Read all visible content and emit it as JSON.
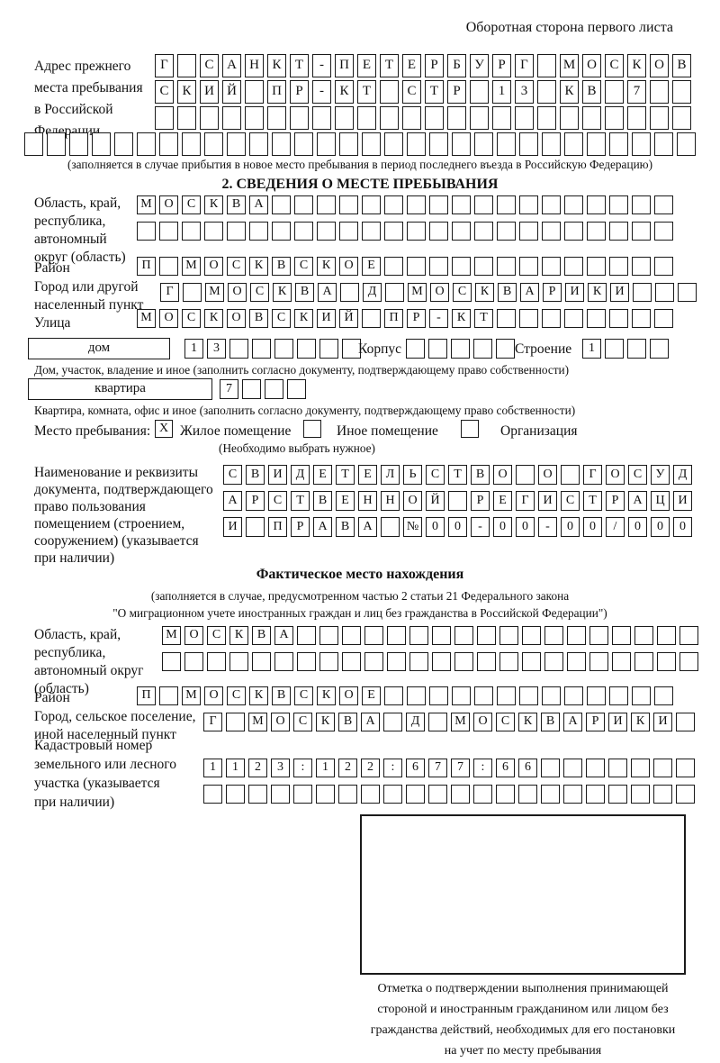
{
  "page_title": "Оборотная сторона первого листа",
  "prev_address": {
    "label_lines": [
      "Адрес прежнего",
      "места пребывания",
      "в Российской",
      "Федерации"
    ],
    "rows": [
      "Г САНКТ-ПЕТЕРБУРГ МОСКОВ",
      "СКИЙ ПР-КТ СТР 13 КВ 7  ",
      "                        "
    ],
    "full_row": "                              ",
    "note": "(заполняется в случае прибытия в новое место пребывания в период последнего въезда в Российскую Федерацию)"
  },
  "section2": {
    "heading": "2. СВЕДЕНИЯ О МЕСТЕ ПРЕБЫВАНИЯ",
    "oblast": {
      "label_lines": [
        "Область, край,",
        "республика,",
        "автономный",
        "округ (область)"
      ],
      "rows": [
        "МОСКВА                  ",
        "                        "
      ]
    },
    "raion": {
      "label": "Район",
      "row": "П МОСКВСКОЕ             "
    },
    "gorod": {
      "label_lines": [
        "Город или другой",
        "населенный пункт"
      ],
      "row": "Г МОСКВА Д МОСКВАРИКИ   "
    },
    "ulitsa": {
      "label": "Улица",
      "row": "МОСКОВСКИЙ ПР-КТ        "
    },
    "dom": {
      "label": "дом",
      "cells": "13      ",
      "korpus_label": "Корпус",
      "korpus_cells": "     ",
      "stroenie_label": "Строение",
      "stroenie_cells": "1   ",
      "note": "Дом, участок, владение и иное (заполнить согласно документу, подтверждающему право собственности)"
    },
    "kvartira": {
      "label": "квартира",
      "cells": "7   ",
      "note": "Квартира, комната, офис и иное (заполнить согласно документу, подтверждающему право собственности)"
    },
    "mesto": {
      "label": "Место пребывания:",
      "options": [
        {
          "label": "Жилое помещение",
          "checked": "X"
        },
        {
          "label": "Иное помещение",
          "checked": ""
        },
        {
          "label": "Организация",
          "checked": ""
        }
      ],
      "note": "(Необходимо выбрать нужное)"
    },
    "document": {
      "label_lines": [
        "Наименование и реквизиты",
        "документа, подтверждающего",
        "право пользования",
        "помещением (строением,",
        "сооружением) (указывается",
        "при наличии)"
      ],
      "rows": [
        "СВИДЕТЕЛЬСТВО О ГОСУД",
        "АРСТВЕННОЙ РЕГИСТРАЦИ",
        "И ПРАВА №00-00-00/000"
      ]
    }
  },
  "fact_location": {
    "heading": "Фактическое место нахождения",
    "note_lines": [
      "(заполняется в случае, предусмотренном частью 2 статьи 21 Федерального закона",
      "\"О миграционном учете иностранных граждан и лиц без гражданства в Российской Федерации\")"
    ],
    "oblast": {
      "label_lines": [
        "Область, край,",
        "республика,",
        "автономный округ",
        "(область)"
      ],
      "rows": [
        "МОСКВА                  ",
        "                        "
      ]
    },
    "raion": {
      "label": "Район",
      "row": "П МОСКВСКОЕ             "
    },
    "gorod": {
      "label_lines": [
        "Город, сельское поселение,",
        "иной населенный пункт"
      ],
      "row": "Г МОСКВА Д МОСКВАРИКИ "
    },
    "kadastr": {
      "label_lines": [
        "Кадастровый номер",
        "земельного или лесного",
        "участка (указывается",
        "при наличии)"
      ],
      "rows": [
        "1123:122:677:66       ",
        "                      "
      ]
    }
  },
  "stamp_note_lines": [
    "Отметка о подтверждении выполнения принимающей",
    "стороной и иностранным гражданином или лицом без",
    "гражданства действий, необходимых для его постановки",
    "на учет по месту пребывания"
  ]
}
